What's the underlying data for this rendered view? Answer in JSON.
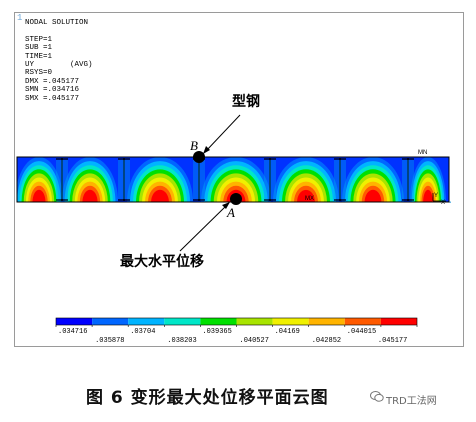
{
  "plot": {
    "window_number": "1",
    "info_lines": [
      "NODAL SOLUTION",
      "",
      "STEP=1",
      "SUB =1",
      "TIME=1",
      "UY        (AVG)",
      "RSYS=0",
      "DMX =.045177",
      "SMN =.034716",
      "SMX =.045177"
    ],
    "mn_label": "MN",
    "mx_label": "MX",
    "axis_y": "Y",
    "axis_x": "X"
  },
  "annotations": {
    "steel_label": "型钢",
    "max_disp_label": "最大水平位移",
    "point_b": "B",
    "point_a": "A"
  },
  "legend": {
    "colors": [
      "#0000ff",
      "#0066ff",
      "#00b4ff",
      "#00e6c8",
      "#00e000",
      "#a8e400",
      "#f0f000",
      "#ffb400",
      "#ff5a00",
      "#ff0000"
    ],
    "top_labels": [
      ".034716",
      ".03704",
      ".039365",
      ".04169",
      ".044015"
    ],
    "bottom_labels": [
      ".035878",
      ".038203",
      ".040527",
      ".042852",
      ".045177"
    ]
  },
  "caption": "图 6  变形最大处位移平面云图",
  "watermark": "TRD工法网"
}
